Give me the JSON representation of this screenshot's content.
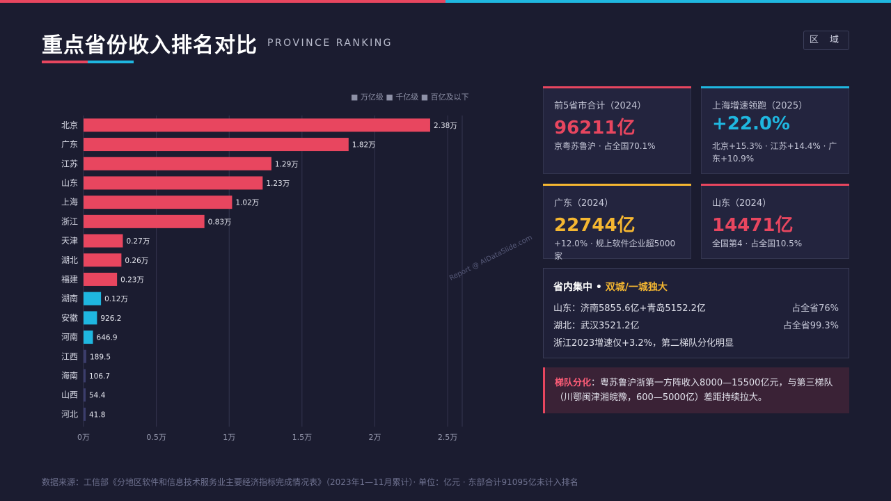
{
  "header": {
    "title": "重点省份收入排名对比",
    "subtitle": "PROVINCE RANKING",
    "region_button": "区 域"
  },
  "legend": {
    "text": "■ 万亿级 ■ 千亿级 ■ 百亿及以下"
  },
  "colors": {
    "accent_red": "#e8465f",
    "accent_blue": "#1fb7e0",
    "accent_gold": "#f5b731",
    "tier_dark": "#3b3d6b"
  },
  "chart_data": {
    "type": "bar",
    "orientation": "horizontal",
    "categories": [
      "北京",
      "广东",
      "江苏",
      "山东",
      "上海",
      "浙江",
      "天津",
      "湖北",
      "福建",
      "湖南",
      "安徽",
      "河南",
      "江西",
      "海南",
      "山西",
      "河北"
    ],
    "values": [
      23800,
      18200,
      12900,
      12300,
      10200,
      8300,
      2700,
      2600,
      2300,
      1200,
      926.2,
      646.9,
      189.5,
      106.7,
      54.4,
      41.8
    ],
    "data_labels": [
      "2.38万",
      "1.82万",
      "1.29万",
      "1.23万",
      "1.02万",
      "0.83万",
      "0.27万",
      "0.26万",
      "0.23万",
      "0.12万",
      "926.2",
      "646.9",
      "189.5",
      "106.7",
      "54.4",
      "41.8"
    ],
    "tick_values": [
      0,
      5000,
      10000,
      15000,
      20000,
      25000
    ],
    "tick_labels": [
      "0万",
      "0.5万",
      "1万",
      "1.5万",
      "2万",
      "2.5万"
    ],
    "xlim": [
      0,
      26000
    ],
    "grid": true,
    "legend_position": "top-right"
  },
  "cards": [
    {
      "label": "前5省市合计（2024）",
      "value": "96211亿",
      "note": "京粤苏鲁沪 · 占全国70.1%",
      "color": "#e8465f"
    },
    {
      "label": "上海增速领跑（2025）",
      "value": "+22.0%",
      "note": "北京+15.3% · 江苏+14.4% · 广东+10.9%",
      "color": "#1fb7e0"
    },
    {
      "label": "广东（2024）",
      "value": "22744亿",
      "note": "+12.0% · 规上软件企业超5000家",
      "color": "#f5b731"
    },
    {
      "label": "山东（2024）",
      "value": "14471亿",
      "note": "全国第4 · 占全国10.5%",
      "color": "#e8465f"
    }
  ],
  "concentration": {
    "title": "省内集中",
    "highlight": "双城/一城独大",
    "rows": [
      {
        "left": "山东：济南5855.6亿+青岛5152.2亿",
        "right": "占全省76%"
      },
      {
        "left": "湖北：武汉3521.2亿",
        "right": "占全省99.3%"
      },
      {
        "left": "浙江2023增速仅+3.2%，第二梯队分化明显",
        "right": ""
      }
    ]
  },
  "tier_note": {
    "label": "梯队分化",
    "text": "：粤苏鲁沪浙第一方阵收入8000—15500亿元，与第三梯队（川鄂闽津湘皖豫，600—5000亿）差距持续拉大。"
  },
  "watermark": "Report @ AIDataSlide.com",
  "footer": "数据来源：工信部《分地区软件和信息技术服务业主要经济指标完成情况表》（2023年1—11月累计）· 单位：亿元 · 东部合计91095亿未计入排名"
}
